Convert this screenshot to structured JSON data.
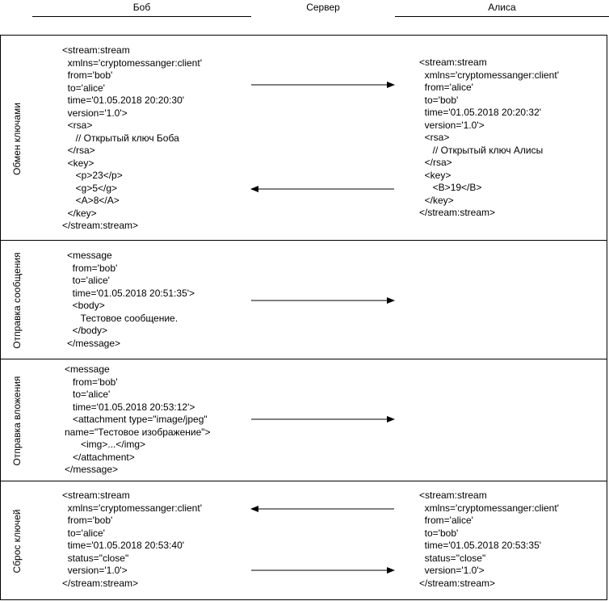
{
  "header": {
    "bob": "Боб",
    "server": "Сервер",
    "alice": "Алиса"
  },
  "sections": [
    {
      "label": "Обмен ключами",
      "bob_code": "<stream:stream\n  xmlns='cryptomessanger:client'\n  from='bob'\n  to='alice'\n  time='01.05.2018 20:20:30'\n  version='1.0'>\n  <rsa>\n     // Открытый ключ Боба\n  </rsa>\n  <key>\n     <p>23</p>\n     <g>5</g>\n     <A>8</A>\n  </key>\n</stream:stream>",
      "alice_code": "<stream:stream\n  xmlns='cryptomessanger:client'\n  from='alice'\n  to='bob'\n  time='01.05.2018 20:20:32'\n  version='1.0'>\n  <rsa>\n     // Открытый ключ Алисы\n  </rsa>\n  <key>\n     <B>19</B>\n  </key>\n</stream:stream>"
    },
    {
      "label": "Отправка сообщения",
      "bob_code": "<message\n  from='bob'\n  to='alice'\n  time='01.05.2018 20:51:35'>\n  <body>\n     Тестовое сообщение.\n  </body>\n</message>"
    },
    {
      "label": "Отправка вложения",
      "bob_code": "<message\n   from='bob'\n   to='alice'\n   time='01.05.2018 20:53:12'>\n   <attachment type=\"image/jpeg\"\nname=\"Тестовое изображение\">\n      <img>...</img>\n   </attachment>\n</message>"
    },
    {
      "label": "Сброс ключей",
      "bob_code": "<stream:stream\n  xmlns='cryptomessanger:client'\n  from='bob'\n  to='alice'\n  time='01.05.2018 20:53:40'\n  status=\"close\"\n  version='1.0'>\n</stream:stream>",
      "alice_code": "<stream:stream\n  xmlns='cryptomessanger:client'\n  from='alice'\n  to='bob'\n  time='01.05.2018 20:53:35'\n  status=\"close\"\n  version='1.0'>\n</stream:stream>"
    }
  ]
}
